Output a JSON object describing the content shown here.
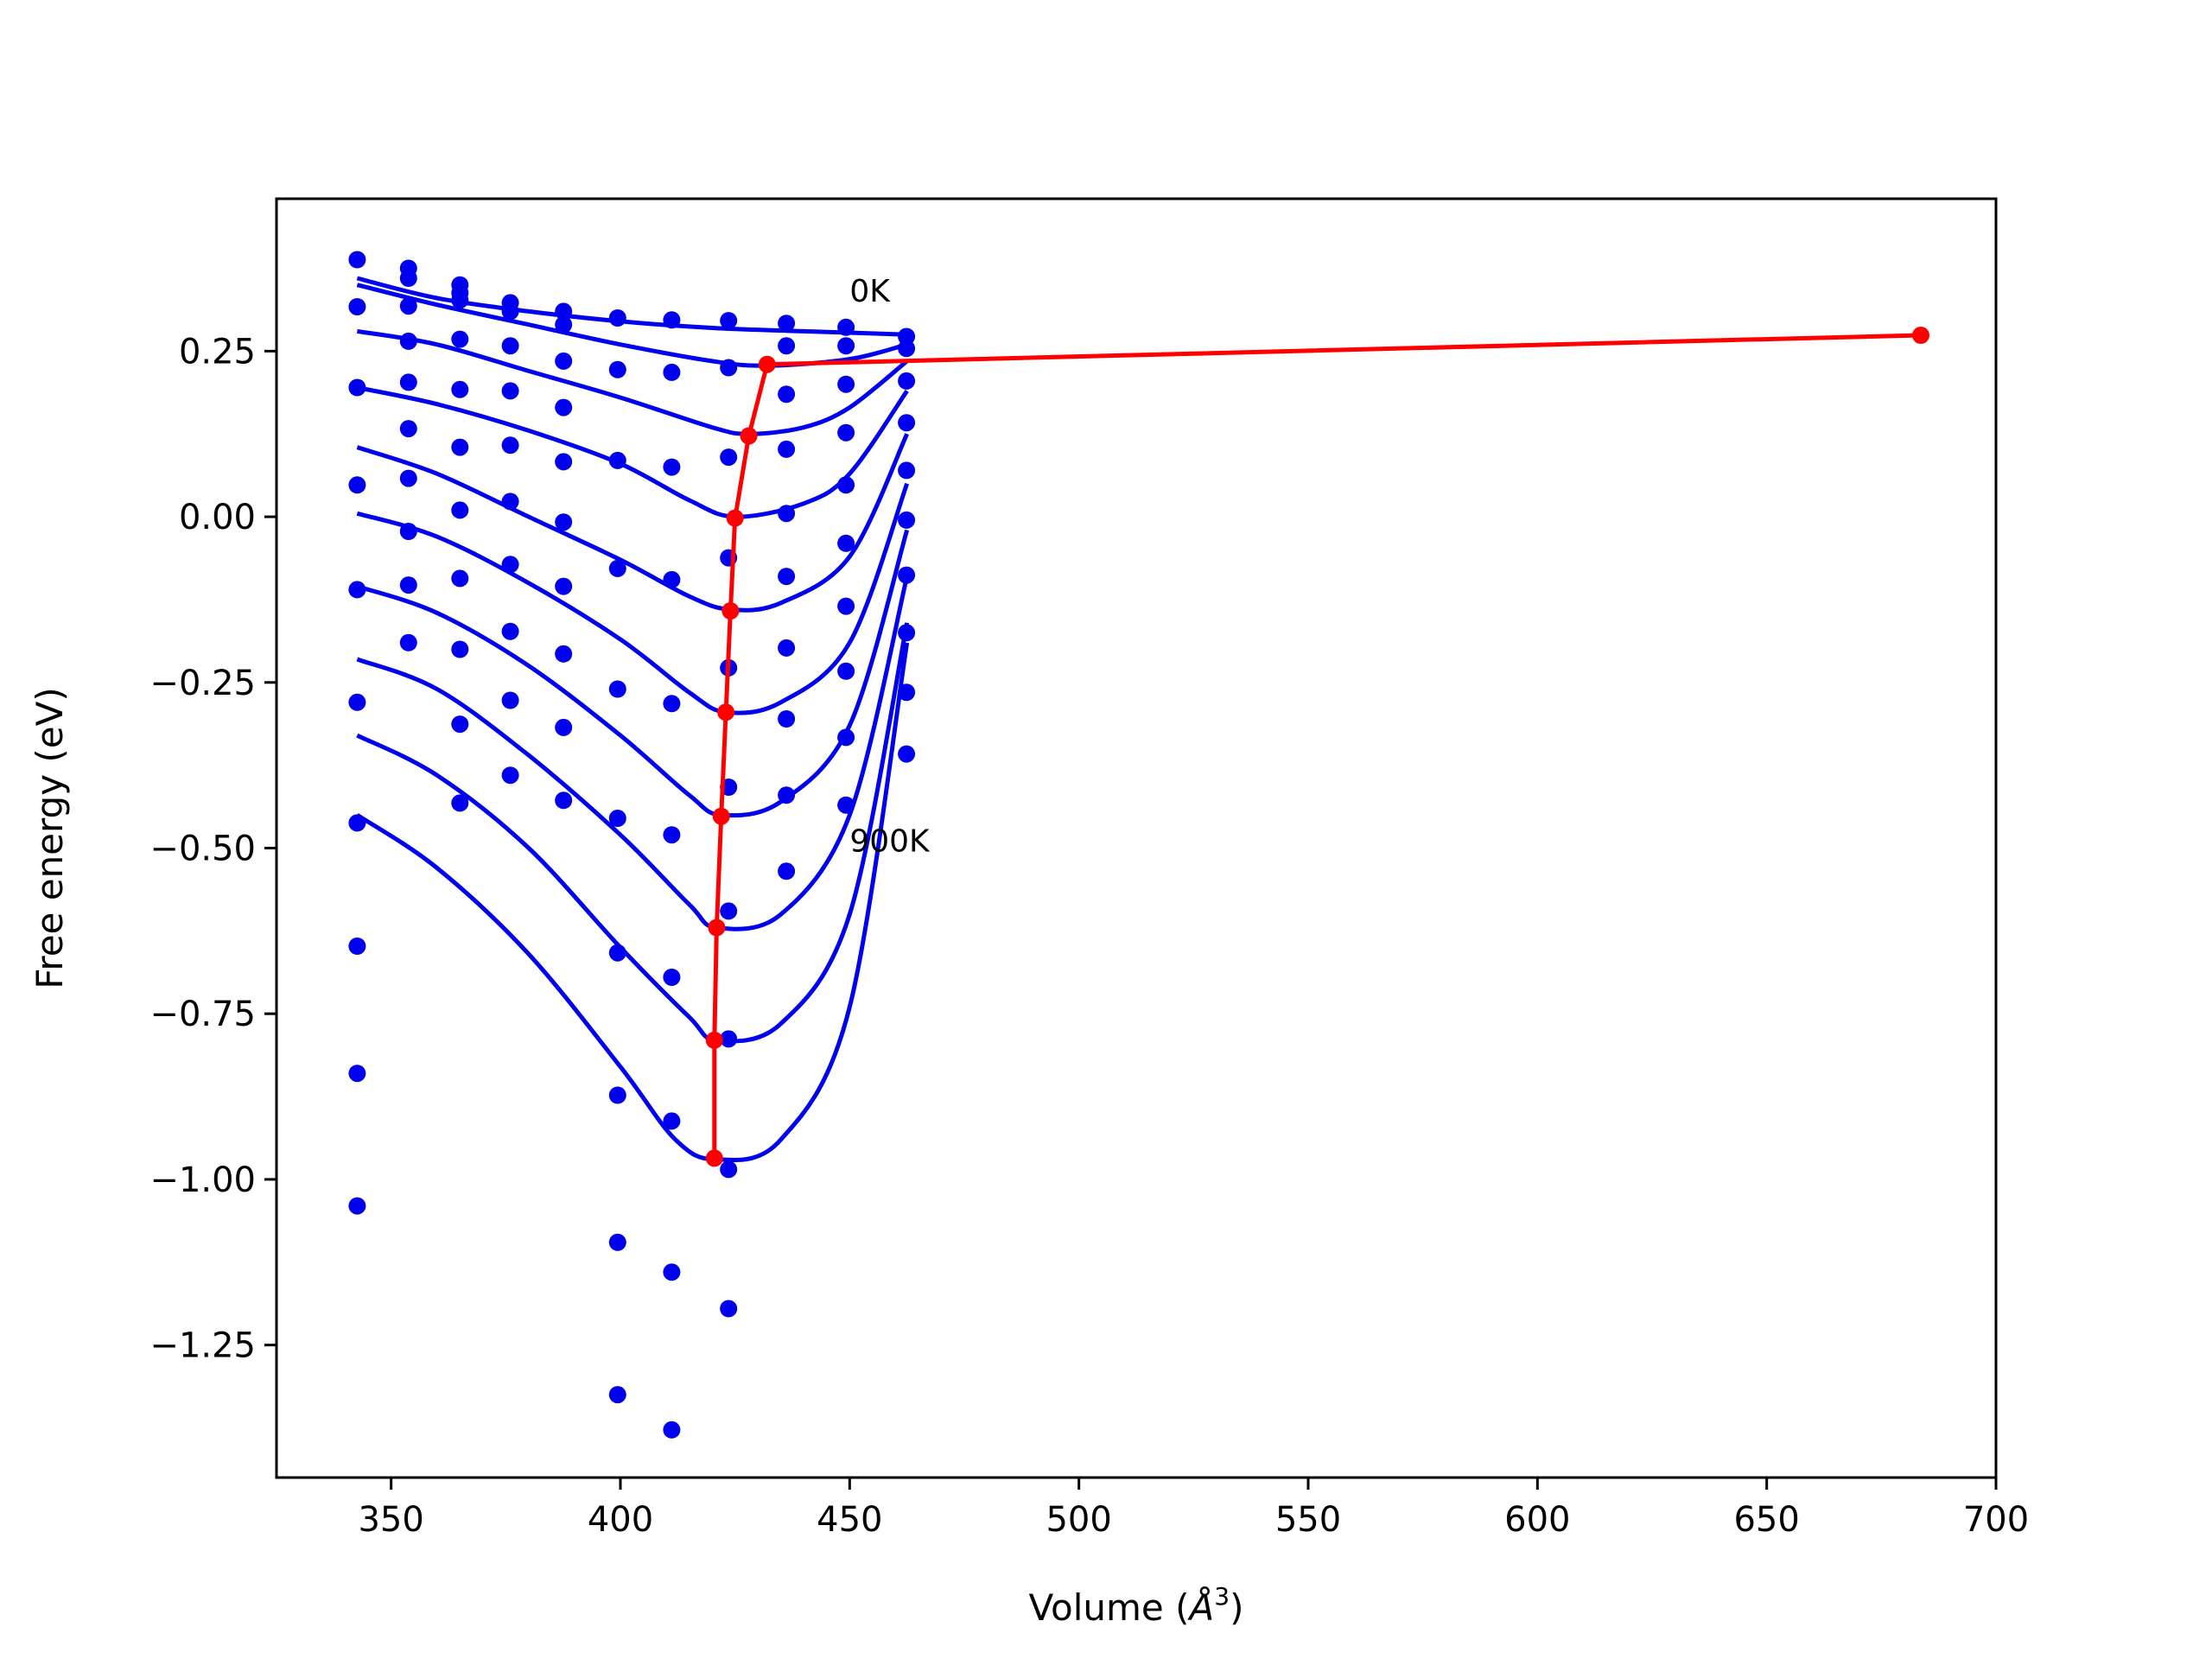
{
  "chart_data": {
    "type": "line",
    "title": "",
    "xlabel_main": "Volume (",
    "xlabel_unit": "Å",
    "xlabel_exp": "3",
    "xlabel_close": ")",
    "ylabel": "Free energy (eV)",
    "xlim": [
      325,
      700
    ],
    "ylim": [
      -1.45,
      0.48
    ],
    "xticks": [
      350,
      400,
      450,
      500,
      550,
      600,
      650,
      700
    ],
    "xtick_labels": [
      "350",
      "400",
      "450",
      "500",
      "550",
      "600",
      "650",
      "700"
    ],
    "yticks": [
      -1.25,
      -1.0,
      -0.75,
      -0.5,
      -0.25,
      0.0,
      0.25
    ],
    "ytick_labels": [
      "−1.25",
      "−1.00",
      "−0.75",
      "−0.50",
      "−0.25",
      "0.00",
      "0.25"
    ],
    "grid": false,
    "colors": {
      "curves": "#0000ee",
      "points": "#0000ee",
      "minima": "#ff0000",
      "frame": "#000000"
    },
    "annotations": [
      {
        "text": "0K",
        "x": 450,
        "y": 0.325
      },
      {
        "text": "900K",
        "x": 450,
        "y": -0.505
      }
    ],
    "fit_curves": [
      [
        [
          342.6,
          0.36
        ],
        [
          360,
          0.33
        ],
        [
          380,
          0.31
        ],
        [
          400,
          0.295
        ],
        [
          420,
          0.285
        ],
        [
          440,
          0.28
        ],
        [
          462.5,
          0.275
        ]
      ],
      [
        [
          342.6,
          0.35
        ],
        [
          360,
          0.32
        ],
        [
          380,
          0.29
        ],
        [
          400,
          0.26
        ],
        [
          420,
          0.235
        ],
        [
          432,
          0.228
        ],
        [
          450,
          0.238
        ],
        [
          462.5,
          0.26
        ]
      ],
      [
        [
          342.6,
          0.28
        ],
        [
          360,
          0.26
        ],
        [
          380,
          0.22
        ],
        [
          400,
          0.18
        ],
        [
          420,
          0.135
        ],
        [
          428,
          0.125
        ],
        [
          440,
          0.135
        ],
        [
          450,
          0.165
        ],
        [
          462.5,
          0.235
        ]
      ],
      [
        [
          342.6,
          0.195
        ],
        [
          360,
          0.17
        ],
        [
          380,
          0.13
        ],
        [
          400,
          0.08
        ],
        [
          415,
          0.025
        ],
        [
          425,
          0.0
        ],
        [
          440,
          0.02
        ],
        [
          450,
          0.065
        ],
        [
          462.5,
          0.19
        ]
      ],
      [
        [
          342.6,
          0.105
        ],
        [
          360,
          0.065
        ],
        [
          380,
          0.0
        ],
        [
          400,
          -0.065
        ],
        [
          415,
          -0.12
        ],
        [
          424,
          -0.14
        ],
        [
          435,
          -0.13
        ],
        [
          450,
          -0.06
        ],
        [
          462.5,
          0.125
        ]
      ],
      [
        [
          342.6,
          0.005
        ],
        [
          360,
          -0.03
        ],
        [
          380,
          -0.1
        ],
        [
          400,
          -0.185
        ],
        [
          415,
          -0.265
        ],
        [
          423,
          -0.295
        ],
        [
          435,
          -0.28
        ],
        [
          450,
          -0.19
        ],
        [
          462.5,
          0.05
        ]
      ],
      [
        [
          342.6,
          -0.105
        ],
        [
          360,
          -0.145
        ],
        [
          380,
          -0.225
        ],
        [
          400,
          -0.33
        ],
        [
          415,
          -0.42
        ],
        [
          422,
          -0.45
        ],
        [
          435,
          -0.43
        ],
        [
          450,
          -0.315
        ],
        [
          462.5,
          -0.02
        ]
      ],
      [
        [
          342.6,
          -0.215
        ],
        [
          360,
          -0.26
        ],
        [
          380,
          -0.36
        ],
        [
          400,
          -0.48
        ],
        [
          415,
          -0.585
        ],
        [
          421,
          -0.62
        ],
        [
          435,
          -0.6
        ],
        [
          450,
          -0.45
        ],
        [
          462.5,
          -0.09
        ]
      ],
      [
        [
          342.6,
          -0.33
        ],
        [
          360,
          -0.39
        ],
        [
          380,
          -0.5
        ],
        [
          400,
          -0.65
        ],
        [
          415,
          -0.755
        ],
        [
          421,
          -0.79
        ],
        [
          435,
          -0.765
        ],
        [
          450,
          -0.6
        ],
        [
          462.5,
          -0.16
        ]
      ],
      [
        [
          342.6,
          -0.45
        ],
        [
          360,
          -0.53
        ],
        [
          380,
          -0.66
        ],
        [
          400,
          -0.83
        ],
        [
          412,
          -0.94
        ],
        [
          421,
          -0.97
        ],
        [
          435,
          -0.94
        ],
        [
          450,
          -0.74
        ],
        [
          462.5,
          -0.19
        ]
      ]
    ],
    "points": [
      [
        342.6,
        0.388
      ],
      [
        353.8,
        0.375
      ],
      [
        365,
        0.35
      ],
      [
        376,
        0.323
      ],
      [
        387.6,
        0.31
      ],
      [
        399.4,
        0.3
      ],
      [
        411.2,
        0.297
      ],
      [
        423.6,
        0.296
      ],
      [
        436.2,
        0.292
      ],
      [
        449.2,
        0.286
      ],
      [
        462.4,
        0.272
      ],
      [
        342.6,
        0.317
      ],
      [
        353.8,
        0.36
      ],
      [
        365,
        0.338
      ],
      [
        376,
        0.31
      ],
      [
        387.6,
        0.29
      ],
      [
        436.2,
        0.258
      ],
      [
        449.2,
        0.258
      ],
      [
        462.4,
        0.254
      ],
      [
        353.8,
        0.318
      ],
      [
        365,
        0.327
      ],
      [
        423.6,
        0.225
      ],
      [
        436.2,
        0.185
      ],
      [
        449.2,
        0.2
      ],
      [
        462.4,
        0.205
      ],
      [
        353.8,
        0.265
      ],
      [
        365,
        0.268
      ],
      [
        376,
        0.258
      ],
      [
        387.6,
        0.235
      ],
      [
        399.4,
        0.222
      ],
      [
        411.2,
        0.218
      ],
      [
        423.6,
        0.09
      ],
      [
        436.2,
        0.102
      ],
      [
        449.2,
        0.127
      ],
      [
        462.4,
        0.142
      ],
      [
        342.6,
        0.195
      ],
      [
        353.8,
        0.203
      ],
      [
        365,
        0.192
      ],
      [
        376,
        0.19
      ],
      [
        387.6,
        0.165
      ],
      [
        436.2,
        0.005
      ],
      [
        449.2,
        0.048
      ],
      [
        462.4,
        0.07
      ],
      [
        353.8,
        0.133
      ],
      [
        365,
        0.105
      ],
      [
        376,
        0.108
      ],
      [
        387.6,
        0.083
      ],
      [
        399.4,
        0.085
      ],
      [
        411.2,
        0.075
      ],
      [
        423.6,
        -0.062
      ],
      [
        436.2,
        -0.09
      ],
      [
        449.2,
        -0.04
      ],
      [
        462.4,
        -0.005
      ],
      [
        342.6,
        0.048
      ],
      [
        353.8,
        0.058
      ],
      [
        365,
        0.01
      ],
      [
        376,
        0.023
      ],
      [
        387.6,
        -0.008
      ],
      [
        436.2,
        -0.198
      ],
      [
        449.2,
        -0.135
      ],
      [
        462.4,
        -0.088
      ],
      [
        353.8,
        -0.022
      ],
      [
        376,
        -0.072
      ],
      [
        387.6,
        -0.105
      ],
      [
        399.4,
        -0.078
      ],
      [
        411.2,
        -0.095
      ],
      [
        423.6,
        -0.228
      ],
      [
        436.2,
        -0.305
      ],
      [
        449.2,
        -0.233
      ],
      [
        462.4,
        -0.175
      ],
      [
        342.6,
        -0.11
      ],
      [
        353.8,
        -0.103
      ],
      [
        365,
        -0.093
      ],
      [
        376,
        -0.173
      ],
      [
        387.6,
        -0.207
      ],
      [
        399.4,
        -0.26
      ],
      [
        411.2,
        -0.282
      ],
      [
        423.6,
        -0.408
      ],
      [
        436.2,
        -0.42
      ],
      [
        449.2,
        -0.333
      ],
      [
        462.4,
        -0.265
      ],
      [
        353.8,
        -0.19
      ],
      [
        365,
        -0.2
      ],
      [
        376,
        -0.277
      ],
      [
        387.6,
        -0.318
      ],
      [
        423.6,
        -0.595
      ],
      [
        436.2,
        -0.535
      ],
      [
        449.2,
        -0.435
      ],
      [
        462.4,
        -0.358
      ],
      [
        342.6,
        -0.28
      ],
      [
        365,
        -0.313
      ],
      [
        376,
        -0.39
      ],
      [
        387.6,
        -0.428
      ],
      [
        399.4,
        -0.455
      ],
      [
        411.2,
        -0.48
      ],
      [
        423.6,
        -0.788
      ],
      [
        342.6,
        -0.462
      ],
      [
        365,
        -0.432
      ],
      [
        399.4,
        -0.658
      ],
      [
        411.2,
        -0.695
      ],
      [
        423.6,
        -0.985
      ],
      [
        342.6,
        -0.648
      ],
      [
        399.4,
        -0.873
      ],
      [
        411.2,
        -0.912
      ],
      [
        342.6,
        -0.84
      ],
      [
        399.4,
        -1.095
      ],
      [
        411.2,
        -1.14
      ],
      [
        423.6,
        -1.195
      ],
      [
        342.6,
        -1.04
      ],
      [
        399.4,
        -1.325
      ],
      [
        411.2,
        -1.378
      ]
    ],
    "minima_path": [
      [
        683.6,
        0.274
      ],
      [
        432,
        0.23
      ],
      [
        428,
        0.122
      ],
      [
        425,
        -0.002
      ],
      [
        424,
        -0.142
      ],
      [
        423,
        -0.295
      ],
      [
        422,
        -0.452
      ],
      [
        421,
        -0.62
      ],
      [
        420.5,
        -0.79
      ],
      [
        420.5,
        -0.968
      ]
    ]
  }
}
